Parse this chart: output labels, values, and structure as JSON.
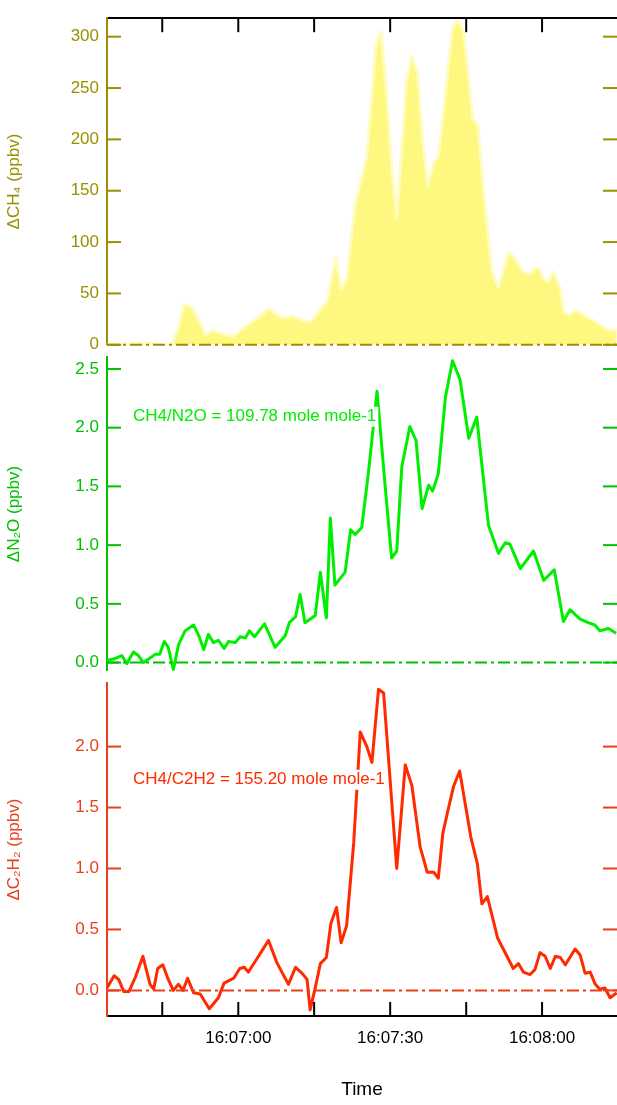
{
  "chart_data": [
    {
      "type": "area",
      "ylabel": "ΔCH₄ (ppbv)",
      "x": [
        16.10947,
        16.11075,
        16.11167,
        16.1125,
        16.11303,
        16.11339,
        16.11369,
        16.11414,
        16.1145,
        16.11486,
        16.11531,
        16.11567,
        16.11642,
        16.11678,
        16.11722,
        16.11786,
        16.11833,
        16.11878,
        16.11906,
        16.11969,
        16.12017,
        16.12061,
        16.12117,
        16.12153,
        16.12203,
        16.12231,
        16.12261,
        16.12308,
        16.12353,
        16.12372,
        16.12422,
        16.1245,
        16.12478,
        16.12508,
        16.12536,
        16.12564,
        16.12589,
        16.12619,
        16.1265,
        16.12678,
        16.12706,
        16.12739,
        16.12764,
        16.12803,
        16.12842,
        16.12872,
        16.12903,
        16.12931,
        16.12953,
        16.12981,
        16.13011,
        16.13058,
        16.13094,
        16.1315,
        16.13175,
        16.13231,
        16.13267,
        16.13294,
        16.13319,
        16.13342,
        16.13369,
        16.13394,
        16.13433,
        16.13453,
        16.13483,
        16.13514,
        16.13578,
        16.13633,
        16.13697,
        16.13742
      ],
      "series": [
        {
          "color": "#fff880",
          "values": [
            0,
            1,
            2,
            0,
            0,
            17,
            40,
            36,
            24,
            10,
            14,
            11,
            8,
            14,
            20,
            28,
            35,
            30,
            26,
            28,
            24,
            22,
            34,
            42,
            85,
            54,
            64,
            137,
            169,
            184,
            292,
            305,
            251,
            175,
            123,
            191,
            257,
            281,
            265,
            200,
            155,
            177,
            183,
            245,
            309,
            316,
            305,
            260,
            219,
            214,
            153,
            71,
            56,
            90,
            86,
            71,
            69,
            75,
            74,
            63,
            62,
            71,
            55,
            31,
            29,
            34,
            27,
            22,
            14,
            15
          ]
        }
      ],
      "xlim": [
        16.10947,
        16.13744
      ],
      "xticks": [
        {
          "value": 16.1125,
          "label": null
        },
        {
          "value": 16.11667,
          "label": null
        },
        {
          "value": 16.12083,
          "label": null
        },
        {
          "value": 16.125,
          "label": null
        },
        {
          "value": 16.12917,
          "label": null
        },
        {
          "value": 16.13333,
          "label": null
        }
      ],
      "ylim": [
        0,
        318
      ],
      "yticks": [
        0,
        50,
        100,
        150,
        200,
        250,
        300
      ],
      "tick_labels": "y",
      "ref_lines": [
        {
          "axis": "y",
          "value": 0,
          "color": "#9a9000",
          "line_style": "dashed"
        }
      ]
    },
    {
      "type": "line",
      "ylabel": "ΔN₂O (ppbv)",
      "annotations": [
        "CH4/N2O = 109.78 mole mole-1"
      ],
      "x": [
        16.10947,
        16.10983,
        16.11028,
        16.11056,
        16.11092,
        16.11119,
        16.11147,
        16.11175,
        16.11211,
        16.11236,
        16.11261,
        16.11283,
        16.11311,
        16.11339,
        16.11375,
        16.11422,
        16.1145,
        16.11478,
        16.11503,
        16.11531,
        16.11558,
        16.11589,
        16.11614,
        16.1165,
        16.11678,
        16.11706,
        16.11728,
        16.11756,
        16.11811,
        16.11869,
        16.11925,
        16.11947,
        16.11981,
        16.12006,
        16.12033,
        16.12089,
        16.12117,
        16.1215,
        16.12172,
        16.12197,
        16.12253,
        16.12283,
        16.12308,
        16.12344,
        16.12381,
        16.12428,
        16.12472,
        16.12508,
        16.12536,
        16.12564,
        16.12608,
        16.12642,
        16.12675,
        16.12711,
        16.12733,
        16.12764,
        16.12803,
        16.12842,
        16.12883,
        16.12931,
        16.12975,
        16.12994,
        16.13039,
        16.13094,
        16.13131,
        16.13156,
        16.13214,
        16.13286,
        16.13342,
        16.134,
        16.1345,
        16.13486,
        16.13542,
        16.13586,
        16.13622,
        16.1365,
        16.13697,
        16.13739
      ],
      "series": [
        {
          "color": "#00ee00",
          "values": [
            0.02,
            0.03,
            0.06,
            -0.01,
            0.09,
            0.06,
            0.0,
            0.03,
            0.07,
            0.07,
            0.18,
            0.13,
            -0.06,
            0.15,
            0.27,
            0.32,
            0.23,
            0.11,
            0.24,
            0.17,
            0.19,
            0.12,
            0.18,
            0.17,
            0.22,
            0.21,
            0.27,
            0.22,
            0.33,
            0.13,
            0.23,
            0.34,
            0.39,
            0.58,
            0.34,
            0.4,
            0.77,
            0.38,
            1.23,
            0.66,
            0.77,
            1.13,
            1.09,
            1.15,
            1.62,
            2.31,
            1.51,
            0.89,
            0.95,
            1.67,
            2.01,
            1.89,
            1.31,
            1.51,
            1.46,
            1.61,
            2.26,
            2.57,
            2.41,
            1.91,
            2.09,
            1.81,
            1.17,
            0.93,
            1.02,
            1.01,
            0.8,
            0.95,
            0.7,
            0.79,
            0.35,
            0.45,
            0.37,
            0.34,
            0.32,
            0.27,
            0.29,
            0.25
          ]
        }
      ],
      "xlim": [
        16.10947,
        16.13744
      ],
      "ylim": [
        -0.07,
        2.6
      ],
      "yticks": [
        {
          "value": 0,
          "label": "0.0"
        },
        0.5,
        {
          "value": 1,
          "label": "1.0"
        },
        1.5,
        {
          "value": 2,
          "label": "2.0"
        },
        2.5
      ],
      "tick_labels": "y",
      "ref_lines": [
        {
          "axis": "y",
          "value": 0,
          "color": "#00c000",
          "line_style": "dashed"
        }
      ]
    },
    {
      "type": "line",
      "ylabel": "ΔC₂H₂ (ppbv)",
      "xlabel": "Time",
      "annotations": [
        "CH4/C2H2 = 155.20 mole mole-1"
      ],
      "x": [
        16.10947,
        16.10986,
        16.11011,
        16.11039,
        16.11067,
        16.11103,
        16.11144,
        16.11183,
        16.11203,
        16.11225,
        16.11253,
        16.11283,
        16.11311,
        16.11339,
        16.11364,
        16.11389,
        16.11422,
        16.11458,
        16.11508,
        16.11558,
        16.11589,
        16.11642,
        16.11675,
        16.117,
        16.11722,
        16.11769,
        16.11833,
        16.11878,
        16.11906,
        16.11942,
        16.11981,
        16.12017,
        16.12044,
        16.12061,
        16.12089,
        16.12117,
        16.1215,
        16.12175,
        16.12206,
        16.12231,
        16.12261,
        16.123,
        16.12336,
        16.12372,
        16.124,
        16.12436,
        16.12464,
        16.12492,
        16.12536,
        16.12583,
        16.12619,
        16.12664,
        16.12703,
        16.12739,
        16.12764,
        16.12789,
        16.12819,
        16.12847,
        16.12881,
        16.12906,
        16.12942,
        16.12978,
        16.13003,
        16.13033,
        16.13089,
        16.13175,
        16.13203,
        16.13231,
        16.13267,
        16.13294,
        16.13322,
        16.1335,
        16.13378,
        16.13406,
        16.13433,
        16.13461,
        16.13514,
        16.13542,
        16.13569,
        16.13597,
        16.13625,
        16.1365,
        16.13678,
        16.13706,
        16.13742
      ],
      "series": [
        {
          "color": "#ff2a00",
          "values": [
            0.02,
            0.12,
            0.09,
            -0.01,
            -0.01,
            0.11,
            0.28,
            0.05,
            0.01,
            0.18,
            0.21,
            0.09,
            0.0,
            0.05,
            0.0,
            0.1,
            -0.02,
            -0.03,
            -0.15,
            -0.06,
            0.06,
            0.1,
            0.18,
            0.19,
            0.15,
            0.26,
            0.41,
            0.23,
            0.15,
            0.05,
            0.19,
            0.14,
            0.09,
            -0.16,
            0.02,
            0.22,
            0.27,
            0.55,
            0.68,
            0.39,
            0.53,
            1.21,
            2.12,
            2.0,
            1.87,
            2.47,
            2.44,
            1.88,
            1.0,
            1.85,
            1.68,
            1.18,
            0.97,
            0.97,
            0.92,
            1.29,
            1.49,
            1.67,
            1.8,
            1.58,
            1.26,
            1.04,
            0.71,
            0.77,
            0.43,
            0.18,
            0.22,
            0.15,
            0.13,
            0.17,
            0.31,
            0.28,
            0.18,
            0.28,
            0.27,
            0.21,
            0.34,
            0.29,
            0.14,
            0.15,
            0.05,
            0.01,
            0.02,
            -0.06,
            -0.02
          ]
        }
      ],
      "xlim": [
        16.10947,
        16.13744
      ],
      "xticks": [
        {
          "value": 16.1125,
          "label": null
        },
        {
          "value": 16.11667,
          "label": "16:07:00"
        },
        {
          "value": 16.12083,
          "label": null
        },
        {
          "value": 16.125,
          "label": "16:07:30"
        },
        {
          "value": 16.12917,
          "label": null
        },
        {
          "value": 16.13333,
          "label": "16:08:00"
        }
      ],
      "ylim": [
        -0.21,
        2.52
      ],
      "yticks": [
        {
          "value": 0,
          "label": "0.0"
        },
        0.5,
        {
          "value": 1,
          "label": "1.0"
        },
        1.5,
        {
          "value": 2,
          "label": "2.0"
        }
      ],
      "ref_lines": [
        {
          "axis": "y",
          "value": 0,
          "color": "#e8401c",
          "line_style": "dashed"
        }
      ]
    }
  ]
}
